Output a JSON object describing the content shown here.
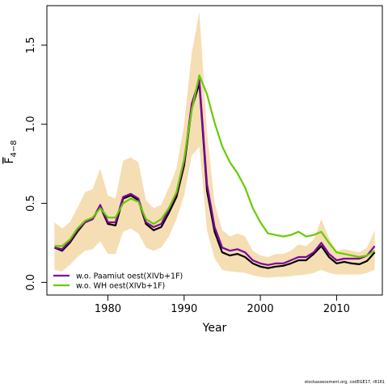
{
  "chart_data": {
    "type": "line",
    "xlabel": "Year",
    "ylabel": "F̅ 4−8",
    "ylabel_main": "F",
    "ylabel_sub": "4−8",
    "xlim": [
      1972,
      2016
    ],
    "ylim": [
      -0.08,
      1.75
    ],
    "x_ticks": [
      1980,
      1990,
      2000,
      2010
    ],
    "y_ticks": [
      0.0,
      0.5,
      1.0,
      1.5
    ],
    "y_tick_labels": [
      "0.0",
      "0.5",
      "1.0",
      "1.5"
    ],
    "legend_position": "bottom-left",
    "colors": {
      "band": "#f5deb3",
      "base": "#000000",
      "paamiut": "#8000a0",
      "wh": "#66cc00"
    },
    "x": [
      1973,
      1974,
      1975,
      1976,
      1977,
      1978,
      1979,
      1980,
      1981,
      1982,
      1983,
      1984,
      1985,
      1986,
      1987,
      1988,
      1989,
      1990,
      1991,
      1992,
      1993,
      1994,
      1995,
      1996,
      1997,
      1998,
      1999,
      2000,
      2001,
      2002,
      2003,
      2004,
      2005,
      2006,
      2007,
      2008,
      2009,
      2010,
      2011,
      2012,
      2013,
      2014,
      2015
    ],
    "band": {
      "upper": [
        0.38,
        0.34,
        0.38,
        0.47,
        0.57,
        0.59,
        0.72,
        0.55,
        0.53,
        0.77,
        0.79,
        0.76,
        0.52,
        0.47,
        0.49,
        0.6,
        0.72,
        1.0,
        1.45,
        1.71,
        0.95,
        0.5,
        0.33,
        0.29,
        0.31,
        0.29,
        0.2,
        0.17,
        0.16,
        0.18,
        0.18,
        0.2,
        0.24,
        0.23,
        0.27,
        0.4,
        0.28,
        0.2,
        0.21,
        0.2,
        0.19,
        0.22,
        0.33
      ],
      "lower": [
        0.08,
        0.07,
        0.11,
        0.16,
        0.2,
        0.21,
        0.26,
        0.18,
        0.18,
        0.32,
        0.34,
        0.31,
        0.22,
        0.2,
        0.22,
        0.29,
        0.4,
        0.55,
        0.8,
        0.86,
        0.33,
        0.15,
        0.08,
        0.07,
        0.065,
        0.06,
        0.045,
        0.035,
        0.03,
        0.035,
        0.035,
        0.04,
        0.045,
        0.05,
        0.06,
        0.08,
        0.06,
        0.05,
        0.05,
        0.05,
        0.05,
        0.06,
        0.08
      ]
    },
    "series": [
      {
        "key": "base",
        "values": [
          0.22,
          0.2,
          0.25,
          0.32,
          0.38,
          0.4,
          0.48,
          0.37,
          0.36,
          0.53,
          0.55,
          0.52,
          0.37,
          0.33,
          0.35,
          0.44,
          0.54,
          0.74,
          1.1,
          1.26,
          0.58,
          0.32,
          0.19,
          0.17,
          0.18,
          0.16,
          0.12,
          0.1,
          0.09,
          0.1,
          0.105,
          0.12,
          0.14,
          0.14,
          0.18,
          0.23,
          0.16,
          0.12,
          0.13,
          0.12,
          0.115,
          0.135,
          0.19
        ]
      },
      {
        "key": "paamiut",
        "name": "w.o. Paamiut   oest(XIVb+1F)",
        "values": [
          0.22,
          0.21,
          0.26,
          0.33,
          0.38,
          0.4,
          0.49,
          0.38,
          0.38,
          0.54,
          0.56,
          0.53,
          0.38,
          0.35,
          0.37,
          0.46,
          0.56,
          0.76,
          1.13,
          1.28,
          0.62,
          0.35,
          0.22,
          0.2,
          0.21,
          0.19,
          0.14,
          0.12,
          0.11,
          0.12,
          0.12,
          0.14,
          0.16,
          0.16,
          0.19,
          0.25,
          0.18,
          0.14,
          0.15,
          0.15,
          0.15,
          0.17,
          0.23
        ]
      },
      {
        "key": "wh",
        "name": "w.o. WH   oest(XIVb+1F)",
        "values": [
          0.23,
          0.23,
          0.27,
          0.34,
          0.39,
          0.41,
          0.47,
          0.41,
          0.41,
          0.5,
          0.53,
          0.51,
          0.4,
          0.37,
          0.4,
          0.47,
          0.57,
          0.78,
          1.09,
          1.31,
          1.19,
          1.01,
          0.86,
          0.76,
          0.69,
          0.6,
          0.47,
          0.38,
          0.31,
          0.3,
          0.29,
          0.3,
          0.32,
          0.29,
          0.3,
          0.32,
          0.25,
          0.19,
          0.18,
          0.17,
          0.16,
          0.17,
          0.2
        ]
      }
    ]
  },
  "footer": {
    "text": "stockassessment.org, codEGE17, r8161"
  }
}
